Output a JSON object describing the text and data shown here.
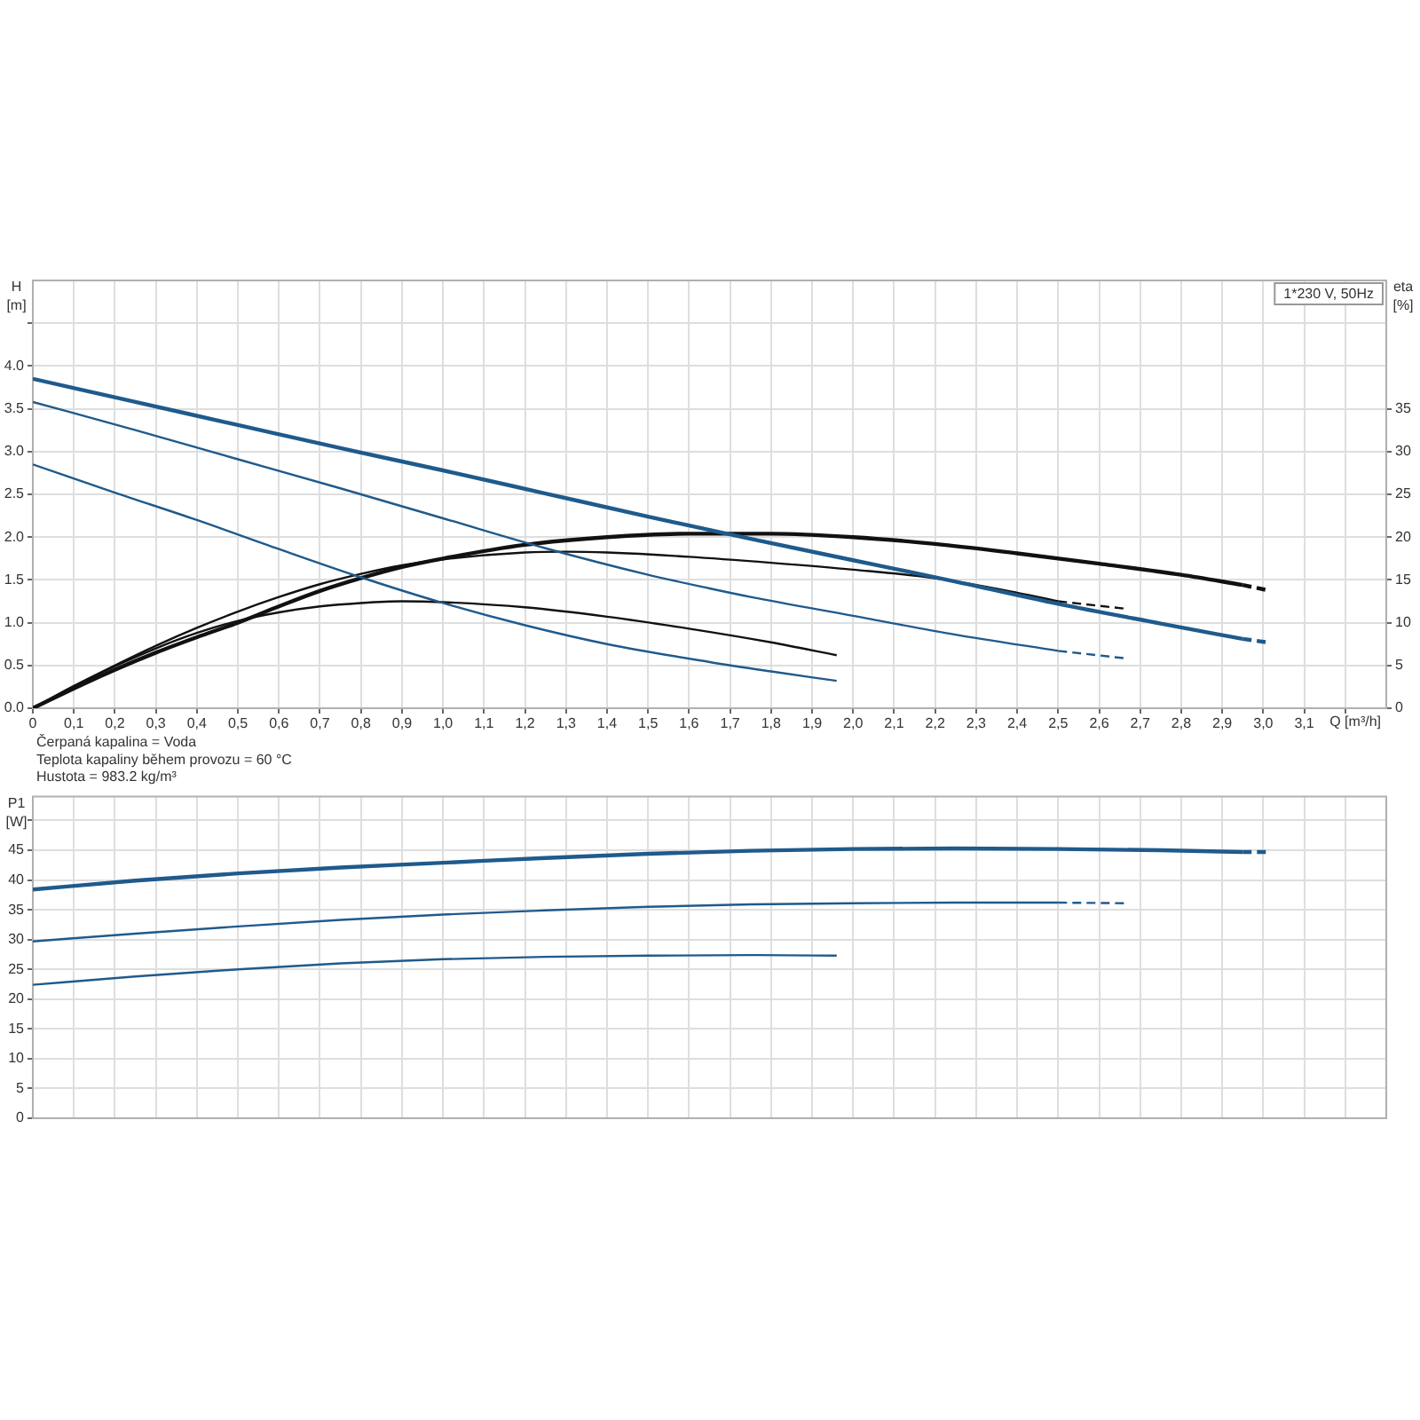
{
  "chart_data": [
    {
      "type": "line",
      "subtitle": "1*230 V, 50Hz",
      "xlabel": "Q [m³/h]",
      "ylabel": "H [m]",
      "y2label": "eta [%]",
      "annotations": [
        "Čerpaná kapalina = Voda",
        "Teplota kapaliny během provozu = 60 °C",
        "Hustota = 983.2 kg/m³"
      ],
      "xlim": [
        0,
        3.3
      ],
      "xticks": [
        0,
        {
          "value": 0.1,
          "label": "0,1"
        },
        {
          "value": 0.2,
          "label": "0,2"
        },
        {
          "value": 0.3,
          "label": "0,3"
        },
        {
          "value": 0.4,
          "label": "0,4"
        },
        {
          "value": 0.5,
          "label": "0,5"
        },
        {
          "value": 0.6,
          "label": "0,6"
        },
        {
          "value": 0.7,
          "label": "0,7"
        },
        {
          "value": 0.8,
          "label": "0,8"
        },
        {
          "value": 0.9,
          "label": "0,9"
        },
        {
          "value": 1.0,
          "label": "1,0"
        },
        {
          "value": 1.1,
          "label": "1,1"
        },
        {
          "value": 1.2,
          "label": "1,2"
        },
        {
          "value": 1.3,
          "label": "1,3"
        },
        {
          "value": 1.4,
          "label": "1,4"
        },
        {
          "value": 1.5,
          "label": "1,5"
        },
        {
          "value": 1.6,
          "label": "1,6"
        },
        {
          "value": 1.7,
          "label": "1,7"
        },
        {
          "value": 1.8,
          "label": "1,8"
        },
        {
          "value": 1.9,
          "label": "1,9"
        },
        {
          "value": 2.0,
          "label": "2,0"
        },
        {
          "value": 2.1,
          "label": "2,1"
        },
        {
          "value": 2.2,
          "label": "2,2"
        },
        {
          "value": 2.3,
          "label": "2,3"
        },
        {
          "value": 2.4,
          "label": "2,4"
        },
        {
          "value": 2.5,
          "label": "2,5"
        },
        {
          "value": 2.6,
          "label": "2,6"
        },
        {
          "value": 2.7,
          "label": "2,7"
        },
        {
          "value": 2.8,
          "label": "2,8"
        },
        {
          "value": 2.9,
          "label": "2,9"
        },
        {
          "value": 3.0,
          "label": "3,0"
        },
        {
          "value": 3.1,
          "label": "3,1"
        },
        {
          "value": 3.2,
          "label": null
        }
      ],
      "ylim": [
        0,
        5
      ],
      "yticks": [
        {
          "value": 0,
          "label": "0.0"
        },
        0.5,
        {
          "value": 1,
          "label": "1.0"
        },
        1.5,
        {
          "value": 2,
          "label": "2.0"
        },
        2.5,
        {
          "value": 3,
          "label": "3.0"
        },
        3.5,
        {
          "value": 4,
          "label": "4.0"
        },
        {
          "value": 4.5,
          "label": null
        }
      ],
      "y2lim": [
        0,
        50
      ],
      "y2ticks": [
        0,
        5,
        10,
        15,
        20,
        25,
        30,
        35
      ],
      "grid": true,
      "series": [
        {
          "color": "#1f5a8c",
          "x": [
            0,
            0.25,
            0.5,
            0.75,
            1.0,
            1.25,
            1.5,
            1.75,
            2.0,
            2.25,
            2.5,
            2.75,
            2.95
          ],
          "values": [
            3.85,
            3.58,
            3.31,
            3.04,
            2.78,
            2.51,
            2.24,
            1.98,
            1.73,
            1.48,
            1.22,
            0.99,
            0.81
          ]
        },
        {
          "color": "#1f5a8c",
          "line_style": "dashed",
          "x": [
            2.95,
            3.01
          ],
          "values": [
            0.81,
            0.77
          ]
        },
        {
          "color": "#1f5a8c",
          "x": [
            0,
            0.25,
            0.5,
            0.75,
            1.0,
            1.25,
            1.5,
            1.65,
            1.75,
            2.0,
            2.25,
            2.5
          ],
          "values": [
            3.58,
            3.25,
            2.91,
            2.57,
            2.22,
            1.87,
            1.56,
            1.4,
            1.3,
            1.08,
            0.86,
            0.67
          ]
        },
        {
          "color": "#1f5a8c",
          "line_style": "dashed",
          "x": [
            2.5,
            2.67
          ],
          "values": [
            0.67,
            0.58
          ]
        },
        {
          "color": "#1f5a8c",
          "x": [
            0,
            0.2,
            0.4,
            0.6,
            0.8,
            1.0,
            1.2,
            1.4,
            1.65,
            1.8,
            1.96
          ],
          "values": [
            2.85,
            2.52,
            2.2,
            1.86,
            1.53,
            1.23,
            0.97,
            0.75,
            0.54,
            0.43,
            0.32
          ]
        },
        {
          "color": "#111111",
          "axis": "y2",
          "x": [
            0,
            0.1,
            0.2,
            0.3,
            0.4,
            0.5,
            0.6,
            0.7,
            0.8,
            0.9,
            1.0,
            1.2,
            1.4,
            1.6,
            1.8,
            2.0,
            2.2,
            2.4,
            2.6,
            2.8,
            2.95
          ],
          "values": [
            0,
            2.3,
            4.5,
            6.5,
            8.3,
            10.0,
            11.9,
            13.7,
            15.2,
            16.5,
            17.5,
            19.1,
            20.0,
            20.4,
            20.4,
            20.0,
            19.2,
            18.1,
            16.9,
            15.6,
            14.4
          ]
        },
        {
          "color": "#111111",
          "axis": "y2",
          "line_style": "dashed",
          "x": [
            2.95,
            3.01
          ],
          "values": [
            14.4,
            13.8
          ]
        },
        {
          "color": "#111111",
          "axis": "y2",
          "x": [
            0,
            0.1,
            0.2,
            0.3,
            0.4,
            0.5,
            0.6,
            0.7,
            0.8,
            0.9,
            1.0,
            1.2,
            1.3,
            1.4,
            1.6,
            1.8,
            2.0,
            2.2,
            2.4,
            2.5
          ],
          "values": [
            0,
            2.6,
            5.0,
            7.3,
            9.4,
            11.3,
            13.0,
            14.5,
            15.7,
            16.7,
            17.4,
            18.2,
            18.3,
            18.2,
            17.7,
            17.0,
            16.2,
            15.2,
            13.5,
            12.5
          ]
        },
        {
          "color": "#111111",
          "axis": "y2",
          "line_style": "dashed",
          "x": [
            2.5,
            2.67
          ],
          "values": [
            12.5,
            11.6
          ]
        },
        {
          "color": "#111111",
          "axis": "y2",
          "x": [
            0,
            0.1,
            0.2,
            0.3,
            0.4,
            0.5,
            0.6,
            0.7,
            0.8,
            0.9,
            1.0,
            1.2,
            1.4,
            1.6,
            1.8,
            1.96
          ],
          "values": [
            0,
            2.5,
            4.9,
            7.0,
            8.8,
            10.2,
            11.2,
            11.9,
            12.3,
            12.5,
            12.4,
            11.8,
            10.7,
            9.3,
            7.7,
            6.2
          ]
        }
      ]
    },
    {
      "type": "line",
      "ylabel": "P1 [W]",
      "tick_labels": "y",
      "xlim": [
        0,
        3.3
      ],
      "xticks": [
        0,
        0.1,
        0.2,
        0.3,
        0.4,
        0.5,
        0.6,
        0.7,
        0.8,
        0.9,
        1.0,
        1.1,
        1.2,
        1.3,
        1.4,
        1.5,
        1.6,
        1.7,
        1.8,
        1.9,
        2.0,
        2.1,
        2.2,
        2.3,
        2.4,
        2.5,
        2.6,
        2.7,
        2.8,
        2.9,
        3.0,
        3.1,
        3.2
      ],
      "ylim": [
        0,
        54
      ],
      "yticks": [
        0,
        5,
        10,
        15,
        20,
        25,
        30,
        35,
        40,
        45,
        {
          "value": 50,
          "label": null
        }
      ],
      "grid": true,
      "series": [
        {
          "color": "#1f5a8c",
          "x": [
            0,
            0.25,
            0.5,
            0.75,
            1.0,
            1.25,
            1.5,
            1.75,
            2.0,
            2.25,
            2.5,
            2.75,
            2.95
          ],
          "values": [
            38.4,
            39.9,
            41.1,
            42.1,
            42.9,
            43.7,
            44.4,
            44.9,
            45.2,
            45.3,
            45.2,
            45.0,
            44.7
          ]
        },
        {
          "color": "#1f5a8c",
          "line_style": "dashed",
          "x": [
            2.95,
            3.01
          ],
          "values": [
            44.7,
            44.7
          ]
        },
        {
          "color": "#1f5a8c",
          "x": [
            0,
            0.25,
            0.5,
            0.75,
            1.0,
            1.25,
            1.5,
            1.75,
            2.0,
            2.25,
            2.5
          ],
          "values": [
            29.7,
            31.0,
            32.2,
            33.3,
            34.2,
            34.9,
            35.5,
            35.9,
            36.1,
            36.2,
            36.2
          ]
        },
        {
          "color": "#1f5a8c",
          "line_style": "dashed",
          "x": [
            2.5,
            2.67
          ],
          "values": [
            36.2,
            36.1
          ]
        },
        {
          "color": "#1f5a8c",
          "x": [
            0,
            0.25,
            0.5,
            0.75,
            1.0,
            1.25,
            1.5,
            1.75,
            1.96
          ],
          "values": [
            22.4,
            23.8,
            25.0,
            26.0,
            26.7,
            27.1,
            27.3,
            27.4,
            27.3
          ]
        }
      ]
    }
  ]
}
